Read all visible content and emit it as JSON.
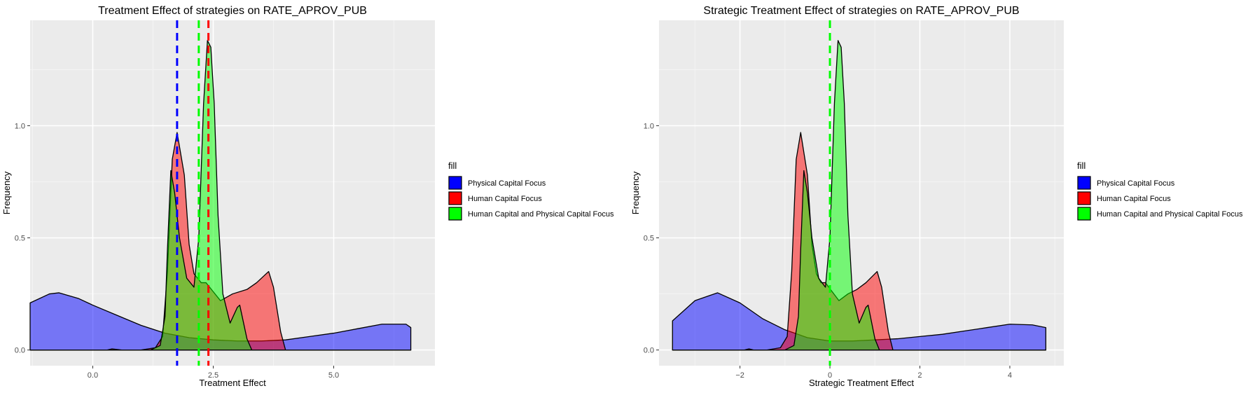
{
  "colors": {
    "panel": "#EBEBEB",
    "grid_major": "#FFFFFF",
    "grid_minor": "#F4F4F4",
    "physical": "#0000FF",
    "human": "#FF0000",
    "both": "#00FF00",
    "outline": "#000000"
  },
  "chart_data": [
    {
      "type": "area",
      "title": "Treatment Effect of strategies on RATE_APROV_PUB",
      "xlabel": "Treatment Effect",
      "ylabel": "Frequency",
      "xlim": [
        -1.3,
        7.1
      ],
      "ylim": [
        -0.07,
        1.47
      ],
      "xticks": [
        0.0,
        2.5,
        5.0
      ],
      "xtick_labels": [
        "0.0",
        "2.5",
        "5.0"
      ],
      "yticks": [
        0.0,
        0.5,
        1.0
      ],
      "ytick_labels": [
        "0.0",
        "0.5",
        "1.0"
      ],
      "grid": true,
      "legend": {
        "title": "fill",
        "position": "right",
        "entries": [
          "Physical Capital Focus",
          "Human Capital Focus",
          "Human Capital and Physical Capital Focus"
        ]
      },
      "series": [
        {
          "name": "Physical Capital Focus",
          "color": "#0000FF",
          "x": [
            -1.3,
            -0.9,
            -0.7,
            -0.3,
            0.0,
            0.5,
            1.0,
            1.5,
            2.0,
            2.5,
            3.0,
            3.5,
            4.0,
            4.5,
            5.0,
            5.5,
            6.0,
            6.5,
            6.6
          ],
          "y": [
            0.21,
            0.25,
            0.255,
            0.23,
            0.2,
            0.155,
            0.11,
            0.075,
            0.055,
            0.045,
            0.04,
            0.04,
            0.045,
            0.06,
            0.075,
            0.095,
            0.115,
            0.115,
            0.1
          ]
        },
        {
          "name": "Human Capital Focus",
          "color": "#FF0000",
          "x": [
            -1.3,
            0.3,
            0.4,
            0.6,
            1.0,
            1.3,
            1.45,
            1.55,
            1.65,
            1.75,
            1.9,
            2.0,
            2.1,
            2.25,
            2.35,
            2.5,
            2.65,
            2.9,
            3.2,
            3.4,
            3.55,
            3.65,
            3.75,
            3.9,
            4.0,
            6.6
          ],
          "y": [
            0.0,
            0.0,
            0.005,
            0.0,
            0.0,
            0.01,
            0.06,
            0.35,
            0.85,
            0.97,
            0.78,
            0.47,
            0.34,
            0.3,
            0.3,
            0.26,
            0.22,
            0.25,
            0.27,
            0.3,
            0.33,
            0.35,
            0.28,
            0.08,
            0.0,
            0.0
          ]
        },
        {
          "name": "Human Capital and Physical Capital Focus",
          "color": "#00FF00",
          "x": [
            -1.3,
            1.2,
            1.4,
            1.5,
            1.55,
            1.62,
            1.7,
            1.8,
            1.95,
            2.1,
            2.2,
            2.3,
            2.38,
            2.45,
            2.52,
            2.6,
            2.7,
            2.85,
            3.0,
            3.05,
            3.1,
            3.2,
            3.3,
            6.6
          ],
          "y": [
            0.0,
            0.0,
            0.02,
            0.15,
            0.45,
            0.8,
            0.7,
            0.5,
            0.32,
            0.28,
            0.5,
            1.1,
            1.38,
            1.35,
            1.1,
            0.6,
            0.25,
            0.12,
            0.19,
            0.2,
            0.15,
            0.05,
            0.0,
            0.0
          ]
        }
      ],
      "vlines": [
        {
          "x": 1.75,
          "color": "#0000FF"
        },
        {
          "x": 2.2,
          "color": "#00FF00"
        },
        {
          "x": 2.4,
          "color": "#FF0000"
        }
      ]
    },
    {
      "type": "area",
      "title": "Strategic Treatment Effect of strategies on RATE_APROV_PUB",
      "xlabel": "Strategic Treatment Effect",
      "ylabel": "Frequency",
      "xlim": [
        -3.8,
        5.2
      ],
      "ylim": [
        -0.07,
        1.47
      ],
      "xticks": [
        -2,
        0,
        2,
        4
      ],
      "xtick_labels": [
        "−2",
        "0",
        "2",
        "4"
      ],
      "yticks": [
        0.0,
        0.5,
        1.0
      ],
      "ytick_labels": [
        "0.0",
        "0.5",
        "1.0"
      ],
      "grid": true,
      "legend": {
        "title": "fill",
        "position": "right",
        "entries": [
          "Physical Capital Focus",
          "Human Capital Focus",
          "Human Capital and Physical Capital Focus"
        ]
      },
      "series": [
        {
          "name": "Physical Capital Focus",
          "color": "#0000FF",
          "x": [
            -3.5,
            -3.0,
            -2.5,
            -2.0,
            -1.5,
            -1.0,
            -0.5,
            0.0,
            0.5,
            1.0,
            1.5,
            2.0,
            2.5,
            3.0,
            3.5,
            4.0,
            4.5,
            4.8
          ],
          "y": [
            0.13,
            0.22,
            0.255,
            0.21,
            0.14,
            0.09,
            0.055,
            0.04,
            0.04,
            0.045,
            0.05,
            0.06,
            0.07,
            0.085,
            0.1,
            0.115,
            0.112,
            0.1
          ]
        },
        {
          "name": "Human Capital Focus",
          "color": "#FF0000",
          "x": [
            -3.5,
            -1.9,
            -1.8,
            -1.7,
            -1.4,
            -1.1,
            -0.95,
            -0.85,
            -0.75,
            -0.65,
            -0.5,
            -0.4,
            -0.3,
            -0.2,
            -0.1,
            0.05,
            0.2,
            0.4,
            0.6,
            0.8,
            0.95,
            1.05,
            1.15,
            1.3,
            1.4,
            4.8
          ],
          "y": [
            0.0,
            0.0,
            0.005,
            0.0,
            0.0,
            0.01,
            0.06,
            0.35,
            0.85,
            0.97,
            0.78,
            0.47,
            0.34,
            0.3,
            0.3,
            0.26,
            0.22,
            0.25,
            0.27,
            0.3,
            0.33,
            0.35,
            0.28,
            0.08,
            0.0,
            0.0
          ]
        },
        {
          "name": "Human Capital and Physical Capital Focus",
          "color": "#00FF00",
          "x": [
            -3.5,
            -1.0,
            -0.8,
            -0.7,
            -0.65,
            -0.58,
            -0.5,
            -0.4,
            -0.25,
            -0.1,
            0.0,
            0.1,
            0.18,
            0.25,
            0.32,
            0.4,
            0.5,
            0.65,
            0.8,
            0.85,
            0.9,
            1.0,
            1.1,
            4.8
          ],
          "y": [
            0.0,
            0.0,
            0.02,
            0.15,
            0.45,
            0.8,
            0.7,
            0.5,
            0.32,
            0.28,
            0.5,
            1.1,
            1.38,
            1.35,
            1.1,
            0.6,
            0.25,
            0.12,
            0.19,
            0.2,
            0.15,
            0.05,
            0.0,
            0.0
          ]
        }
      ],
      "vlines": [
        {
          "x": 0.0,
          "color": "#00FF00"
        }
      ]
    }
  ]
}
